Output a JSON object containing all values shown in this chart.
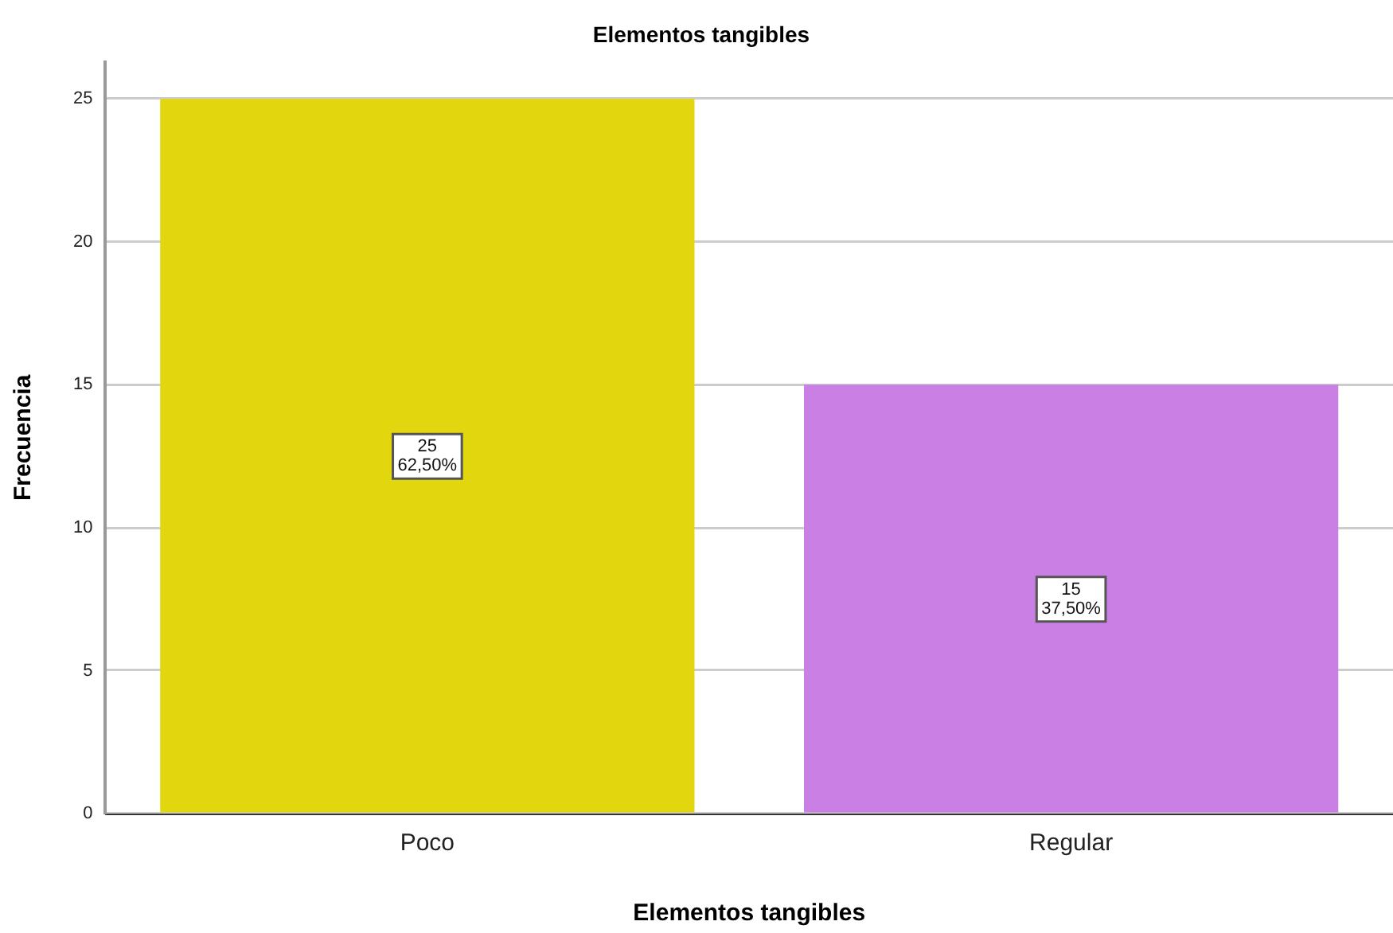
{
  "chart_data": {
    "type": "bar",
    "title": "Elementos tangibles",
    "xlabel": "Elementos tangibles",
    "ylabel": "Frecuencia",
    "categories": [
      "Poco",
      "Regular"
    ],
    "values": [
      25,
      15
    ],
    "colors": [
      "#e2d60e",
      "#c97fe4"
    ],
    "value_labels": [
      "25\n62,50%",
      "15\n37,50%"
    ],
    "ylim": [
      0,
      26.3
    ],
    "yticks": [
      0,
      5,
      10,
      15,
      20,
      25
    ],
    "grid": "y"
  }
}
